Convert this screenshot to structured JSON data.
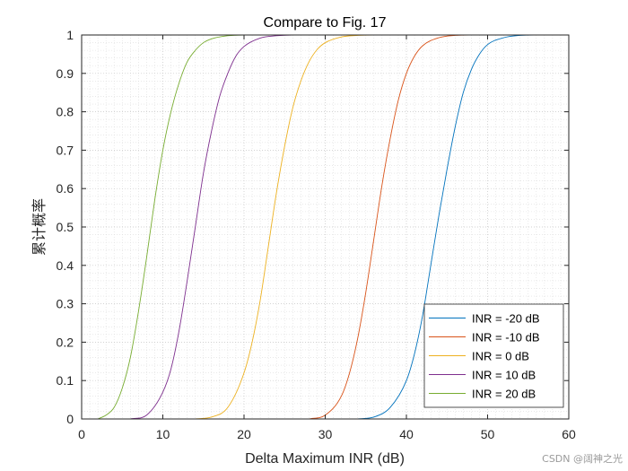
{
  "chart_data": {
    "type": "line",
    "title": "Compare to Fig. 17",
    "xlabel": "Delta Maximum INR (dB)",
    "ylabel": "累计概率",
    "xlim": [
      0,
      60
    ],
    "ylim": [
      0,
      1
    ],
    "xticks": [
      0,
      10,
      20,
      30,
      40,
      50,
      60
    ],
    "xtick_labels": [
      "0",
      "10",
      "20",
      "30",
      "40",
      "50",
      "60"
    ],
    "yticks": [
      0,
      0.1,
      0.2,
      0.3,
      0.4,
      0.5,
      0.6,
      0.7,
      0.8,
      0.9,
      1
    ],
    "ytick_labels": [
      "0",
      "0.1",
      "0.2",
      "0.3",
      "0.4",
      "0.5",
      "0.6",
      "0.7",
      "0.8",
      "0.9",
      "1"
    ],
    "grid": "major and minor dotted",
    "legend_position": "bottom-right",
    "series": [
      {
        "name": "INR = -20 dB",
        "color": "#0072BD",
        "x": [
          34,
          36,
          38,
          40,
          41,
          42,
          43,
          44,
          45,
          46,
          47,
          48,
          49,
          50,
          52,
          54,
          56,
          58,
          60
        ],
        "y": [
          0,
          0.005,
          0.03,
          0.1,
          0.17,
          0.27,
          0.4,
          0.53,
          0.65,
          0.76,
          0.85,
          0.91,
          0.95,
          0.975,
          0.993,
          0.999,
          1,
          1,
          1
        ]
      },
      {
        "name": "INR = -10 dB",
        "color": "#D95319",
        "x": [
          28,
          30,
          32,
          33,
          34,
          35,
          36,
          37,
          38,
          39,
          40,
          41,
          42,
          44,
          46,
          48,
          50,
          52
        ],
        "y": [
          0,
          0.01,
          0.06,
          0.12,
          0.21,
          0.33,
          0.47,
          0.61,
          0.73,
          0.83,
          0.9,
          0.945,
          0.972,
          0.993,
          0.999,
          1,
          1,
          1
        ]
      },
      {
        "name": "INR = 0 dB",
        "color": "#EDB120",
        "x": [
          14,
          16,
          18,
          20,
          21,
          22,
          23,
          24,
          25,
          26,
          27,
          28,
          29,
          30,
          32,
          34,
          36,
          38
        ],
        "y": [
          0,
          0.005,
          0.03,
          0.12,
          0.2,
          0.31,
          0.45,
          0.59,
          0.71,
          0.81,
          0.88,
          0.93,
          0.962,
          0.98,
          0.995,
          0.999,
          1,
          1
        ]
      },
      {
        "name": "INR = 10 dB",
        "color": "#7E2F8E",
        "x": [
          6,
          8,
          10,
          11,
          12,
          13,
          14,
          15,
          16,
          17,
          18,
          19,
          20,
          22,
          24,
          26,
          28,
          30
        ],
        "y": [
          0,
          0.01,
          0.07,
          0.13,
          0.23,
          0.36,
          0.5,
          0.64,
          0.75,
          0.84,
          0.9,
          0.945,
          0.97,
          0.992,
          0.998,
          1,
          1,
          1
        ]
      },
      {
        "name": "INR = 20 dB",
        "color": "#77AC30",
        "x": [
          2,
          3,
          4,
          5,
          6,
          7,
          8,
          9,
          10,
          11,
          12,
          13,
          14,
          15,
          16,
          18,
          20,
          22
        ],
        "y": [
          0,
          0.01,
          0.03,
          0.08,
          0.16,
          0.28,
          0.42,
          0.57,
          0.7,
          0.8,
          0.875,
          0.93,
          0.96,
          0.98,
          0.99,
          0.998,
          1,
          1
        ]
      }
    ]
  },
  "watermark": "CSDN @阔神之光"
}
